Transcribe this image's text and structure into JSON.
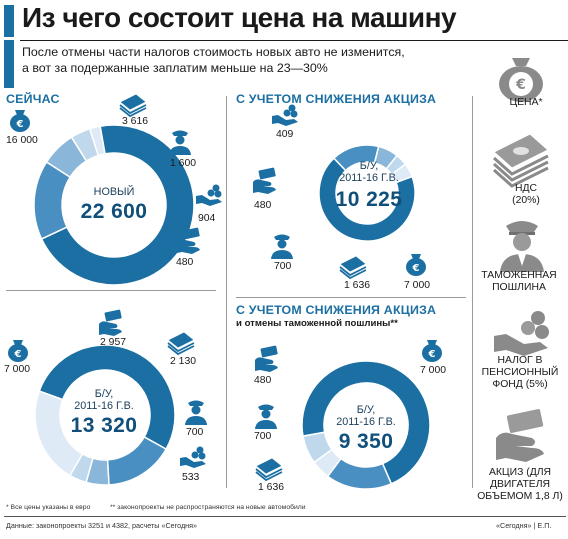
{
  "title": "Из чего состоит цена на машину",
  "subtitle_lines": [
    "После отмены части налогов стоимость новых авто не изменится,",
    "а вот за подержанные заплатим меньше на 23—30%"
  ],
  "colors": {
    "price": "#1b6fa3",
    "vat": "#4a8fc2",
    "customs": "#8ab6d9",
    "pension": "#c0d8ec",
    "excise": "#deebf6",
    "text_dark": "#1a1a1a"
  },
  "legend": [
    {
      "key": "price",
      "label_lines": [
        "ЦЕНА*"
      ],
      "icon": "money-bag-euro-icon"
    },
    {
      "key": "vat",
      "label_lines": [
        "НДС",
        "(20%)"
      ],
      "icon": "banknote-stack-icon"
    },
    {
      "key": "customs",
      "label_lines": [
        "ТАМОЖЕННАЯ",
        "ПОШЛИНА"
      ],
      "icon": "customs-officer-icon"
    },
    {
      "key": "pension",
      "label_lines": [
        "НАЛОГ В",
        "ПЕНСИОННЫЙ",
        "ФОНД (5%)"
      ],
      "icon": "hand-coins-icon"
    },
    {
      "key": "excise",
      "label_lines": [
        "АКЦИЗ (ДЛЯ",
        "ДВИГАТЕЛЯ",
        "ОБЪЕМОМ 1,8 Л)"
      ],
      "icon": "hand-money-icon"
    }
  ],
  "chart_data": [
    {
      "type": "pie",
      "section_title": "СЕЙЧАС",
      "center_sub": [
        "НОВЫЙ"
      ],
      "center_total": "22 600",
      "categories": [
        "ЦЕНА*",
        "НДС (20%)",
        "ТАМОЖЕННАЯ ПОШЛИНА",
        "НАЛОГ В ПЕНСИОННЫЙ ФОНД (5%)",
        "АКЦИЗ (ДЛЯ ДВИГАТЕЛЯ ОБЪЕМОМ 1,8 Л)"
      ],
      "values": [
        16000,
        3616,
        1600,
        904,
        480
      ],
      "value_labels": [
        "16 000",
        "3 616",
        "1 600",
        "904",
        "480"
      ]
    },
    {
      "type": "pie",
      "section_title": "С УЧЕТОМ СНИЖЕНИЯ АКЦИЗА",
      "center_sub": [
        "Б/У,",
        "2011-16 Г.В."
      ],
      "center_total": "10 225",
      "categories": [
        "ЦЕНА*",
        "НДС (20%)",
        "ТАМОЖЕННАЯ ПОШЛИНА",
        "НАЛОГ В ПЕНСИОННЫЙ ФОНД (5%)",
        "АКЦИЗ (ДЛЯ ДВИГАТЕЛЯ ОБЪЕМОМ 1,8 Л)"
      ],
      "values": [
        7000,
        1636,
        700,
        409,
        480
      ],
      "value_labels": [
        "7 000",
        "1 636",
        "700",
        "409",
        "480"
      ]
    },
    {
      "type": "pie",
      "section_title": "",
      "center_sub": [
        "Б/У,",
        "2011-16 Г.В."
      ],
      "center_total": "13 320",
      "categories": [
        "ЦЕНА*",
        "НДС (20%)",
        "ТАМОЖЕННАЯ ПОШЛИНА",
        "НАЛОГ В ПЕНСИОННЫЙ ФОНД (5%)",
        "АКЦИЗ (ДЛЯ ДВИГАТЕЛЯ ОБЪЕМОМ 1,8 Л)"
      ],
      "values": [
        7000,
        2130,
        700,
        533,
        2957
      ],
      "value_labels": [
        "7 000",
        "2 130",
        "700",
        "533",
        "2 957"
      ]
    },
    {
      "type": "pie",
      "section_title": "С УЧЕТОМ СНИЖЕНИЯ АКЦИЗА",
      "section_subtitle": "и  отмены таможенной пошлины**",
      "center_sub": [
        "Б/У,",
        "2011-16 Г.В."
      ],
      "center_total": "9 350",
      "categories": [
        "ЦЕНА*",
        "НДС (20%)",
        "АКЦИЗ (ДЛЯ ДВИГАТЕЛЯ ОБЪЕМОМ 1,8 Л)",
        "НАЛОГ В ПЕНСИОННЫЙ ФОНД (5%)"
      ],
      "values": [
        7000,
        1636,
        480,
        700
      ],
      "value_labels": [
        "7 000",
        "1 636",
        "480",
        "700"
      ]
    }
  ],
  "footnotes": {
    "left": "* Все цены указаны в евро",
    "right": "** законопроекты не распространяются на новые автомобили"
  },
  "source": {
    "left": "Данные: законопроекты 3251 и 4382, расчеты «Сегодня»",
    "right": "«Сегодня» | Е.П."
  }
}
